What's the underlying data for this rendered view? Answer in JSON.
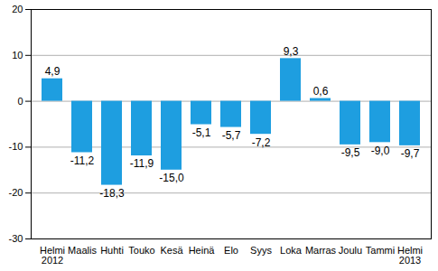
{
  "chart_data": {
    "type": "bar",
    "categories": [
      "Helmi\n2012",
      "Maalis",
      "Huhti",
      "Touko",
      "Kesä",
      "Heinä",
      "Elo",
      "Syys",
      "Loka",
      "Marras",
      "Joulu",
      "Tammi",
      "Helmi\n2013"
    ],
    "values": [
      4.9,
      -11.2,
      -18.3,
      -11.9,
      -15.0,
      -5.1,
      -5.7,
      -7.2,
      9.3,
      0.6,
      -9.5,
      -9.0,
      -9.7
    ],
    "value_labels": [
      "4,9",
      "-11,2",
      "-18,3",
      "-11,9",
      "-15,0",
      "-5,1",
      "-5,7",
      "-7,2",
      "9,3",
      "0,6",
      "-9,5",
      "-9,0",
      "-9,7"
    ],
    "color": "#1e9ee0",
    "ylim": [
      -30,
      20
    ],
    "yticks": [
      -30,
      -20,
      -10,
      0,
      10,
      20
    ],
    "grid": true,
    "data_labels": true
  }
}
